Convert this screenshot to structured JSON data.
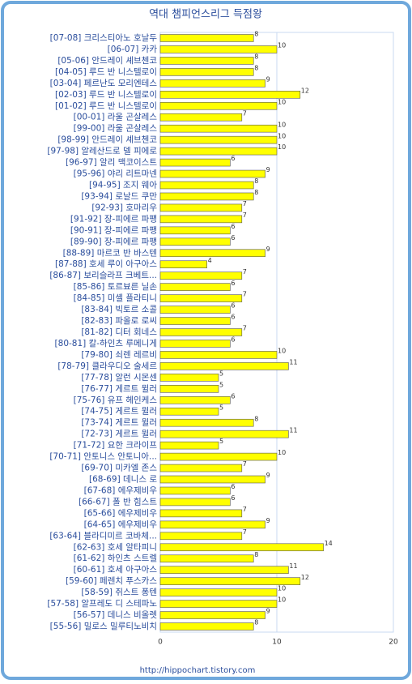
{
  "chart_data": {
    "type": "bar",
    "orientation": "horizontal",
    "title": "역대 챔피언스리그 득점왕",
    "footer": "http://hippochart.tistory.com",
    "categories": [
      "[07-08] 크리스티아노 호날두",
      "[06-07] 카카",
      "[05-06] 안드레이 셰브첸코",
      "[04-05] 루드 반 니스텔로이",
      "[03-04] 페르난도 모리엔테스",
      "[02-03] 루드 반 니스텔로이",
      "[01-02] 루드 반 니스텔로이",
      "[00-01] 라울 곤살레스",
      "[99-00] 라울 곤살레스",
      "[98-99] 안드레이 셰브첸코",
      "[97-98] 알레산드로 델 피에로",
      "[96-97] 알리 맥코이스트",
      "[95-96] 야리 리트마넨",
      "[94-95] 조지 웨아",
      "[93-94] 로날드 쿠만",
      "[92-93] 호마리우",
      "[91-92] 장-피에르 파팽",
      "[90-91] 장-피에르 파팽",
      "[89-90] 장-피에르 파팽",
      "[88-89] 마르코 반 바스텐",
      "[87-88] 호세 루이 아구아스",
      "[86-87] 보리슬라프 크베트...",
      "[85-86] 토르뵤른 닐손",
      "[84-85] 미셸 플라티니",
      "[83-84] 빅토르 소콜",
      "[82-83] 파올로 로씨",
      "[81-82] 디터 회네스",
      "[80-81] 칼-하인츠 루메니게",
      "[79-80] 쇠렌 레르비",
      "[78-79] 클라우디오 술세르",
      "[77-78] 알런 시몬센",
      "[76-77] 게르트 뮐러",
      "[75-76] 유프 헤인케스",
      "[74-75] 게르트 뮐러",
      "[73-74] 게르트 뮐러",
      "[72-73] 게르트 뮐러",
      "[71-72] 요한 크라이프",
      "[70-71] 안토니스 안토니아...",
      "[69-70] 미카엘 존스",
      "[68-69] 데니스 로",
      "[67-68] 에우제비우",
      "[66-67] 폴 반 힘스트",
      "[65-66] 에우제비우",
      "[64-65] 에우제비우",
      "[63-64] 블라디미르 코바체...",
      "[62-63] 호세 알타피니",
      "[61-62] 하인츠 스트렐",
      "[60-61] 호세 아구아스",
      "[59-60] 페렌치 푸스카스",
      "[58-59] 쥐스트 퐁텐",
      "[57-58] 알프레도 디 스테파노",
      "[56-57] 데니스 비올렛",
      "[55-56] 밀로스 밀루티노비치"
    ],
    "values": [
      8,
      10,
      8,
      8,
      9,
      12,
      10,
      7,
      10,
      10,
      10,
      6,
      9,
      8,
      8,
      7,
      7,
      6,
      6,
      9,
      4,
      7,
      6,
      7,
      6,
      6,
      7,
      6,
      10,
      11,
      5,
      5,
      6,
      5,
      8,
      11,
      5,
      10,
      7,
      9,
      6,
      6,
      7,
      9,
      7,
      14,
      8,
      11,
      12,
      10,
      10,
      9,
      8
    ],
    "color": "#ffff00",
    "ylim": [
      0,
      20
    ],
    "yticks": [
      0,
      10,
      20
    ],
    "grid": true,
    "data_labels": true
  }
}
